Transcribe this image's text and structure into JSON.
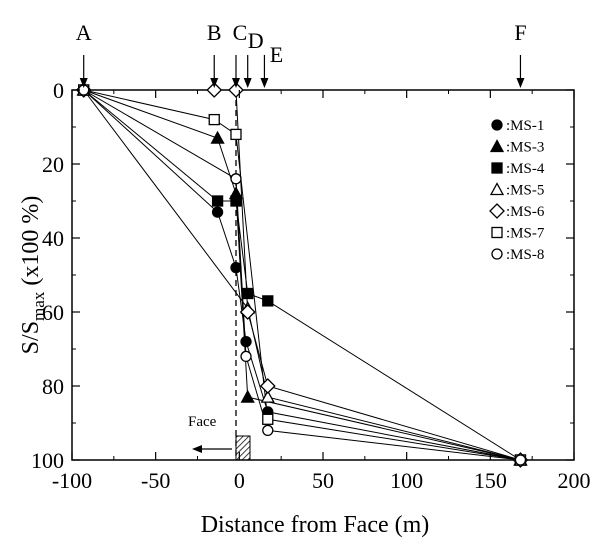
{
  "chart_data": {
    "type": "line",
    "xlabel": "Distance from Face (m)",
    "ylabel_main": "S/S",
    "ylabel_sub": "max",
    "ylabel_tail": " (x100 %)",
    "xlim": [
      -100,
      200
    ],
    "ylim": [
      0,
      100
    ],
    "y_inverted": true,
    "grid": false,
    "legend_position": "right",
    "x_ticks": [
      -100,
      -50,
      0,
      50,
      100,
      150,
      200
    ],
    "x_tick_labels": [
      "-100",
      "-50",
      "0",
      "50",
      "100",
      "150",
      "200"
    ],
    "y_ticks": [
      0,
      20,
      40,
      60,
      80,
      100
    ],
    "y_tick_labels": [
      "0",
      "20",
      "40",
      "60",
      "80",
      "100"
    ],
    "top_markers": [
      {
        "label": "A",
        "x": -93
      },
      {
        "label": "B",
        "x": -15
      },
      {
        "label": "C",
        "x": -2
      },
      {
        "label": "D",
        "x": 5
      },
      {
        "label": "E",
        "x": 15
      },
      {
        "label": "F",
        "x": 168
      }
    ],
    "face_label": "Face",
    "face_x": -2,
    "series": [
      {
        "name": ":MS-1",
        "marker": "circle-filled",
        "x": [
          -93,
          -13,
          -2,
          4,
          17,
          168
        ],
        "y": [
          0,
          33,
          48,
          68,
          87,
          100
        ]
      },
      {
        "name": ":MS-3",
        "marker": "triangle-filled",
        "x": [
          -93,
          -13,
          -2,
          5,
          168
        ],
        "y": [
          0,
          13,
          28,
          83,
          100
        ]
      },
      {
        "name": ":MS-4",
        "marker": "square-filled",
        "x": [
          -93,
          -13,
          -2,
          5,
          17,
          168
        ],
        "y": [
          0,
          30,
          30,
          55,
          57,
          100
        ]
      },
      {
        "name": ":MS-5",
        "marker": "triangle-open",
        "x": [
          -93,
          5,
          17,
          168
        ],
        "y": [
          0,
          59,
          83,
          100
        ]
      },
      {
        "name": ":MS-6",
        "marker": "diamond-open",
        "x": [
          -93,
          -15,
          -2,
          5,
          17,
          168
        ],
        "y": [
          0,
          0,
          0,
          60,
          80,
          100
        ]
      },
      {
        "name": ":MS-7",
        "marker": "square-open",
        "x": [
          -93,
          -15,
          -2,
          17,
          168
        ],
        "y": [
          0,
          8,
          12,
          89,
          100
        ]
      },
      {
        "name": ":MS-8",
        "marker": "circle-open",
        "x": [
          -93,
          -2,
          4,
          17,
          168
        ],
        "y": [
          0,
          24,
          72,
          92,
          100
        ]
      }
    ]
  }
}
